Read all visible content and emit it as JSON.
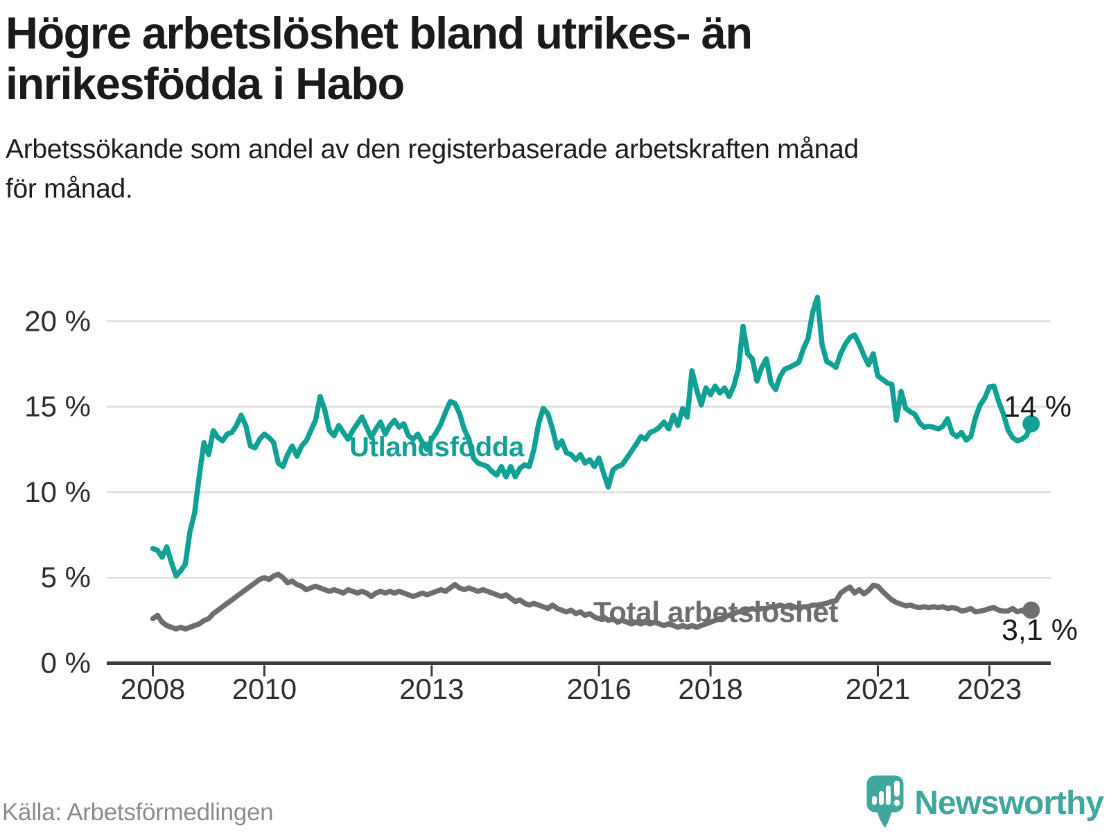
{
  "header": {
    "title": "Högre arbetslöshet bland utrikes- än inrikesfödda i Habo",
    "title_lines": [
      "Högre arbetslöshet bland utrikes- än",
      "inrikesfödda i Habo"
    ],
    "subtitle": "Arbetssökande som andel av den registerbaserade arbetskraften månad för månad.",
    "subtitle_lines": [
      "Arbetssökande som andel av den registerbaserade arbetskraften månad",
      "för månad."
    ]
  },
  "footer": {
    "source": "Källa: Arbetsförmedlingen",
    "brand": "Newsworthy"
  },
  "colors": {
    "teal": "#10a194",
    "gray": "#6d6e70",
    "logo_teal": "#3fa79c",
    "grid": "#dedede",
    "axis": "#3c3c3c",
    "text_dark": "#1a1a1a",
    "tick_text": "#2e2e2e",
    "source_text": "#8c8c8c"
  },
  "chart_data": {
    "type": "line",
    "title": "Högre arbetslöshet bland utrikes- än inrikesfödda i Habo",
    "subtitle": "Arbetssökande som andel av den registerbaserade arbetskraften månad för månad.",
    "x_start": "2008-01",
    "x_end": "2023-10",
    "frequency": "monthly",
    "grid": "horizontal",
    "legend_position": "inline-labels",
    "y_axis": {
      "ticks": [
        0,
        5,
        10,
        15,
        20
      ],
      "labels": [
        "0 %",
        "5 %",
        "10 %",
        "15 %",
        "20 %"
      ],
      "min": 0,
      "max": 22
    },
    "x_ticks": [
      {
        "label": "2008",
        "year": 2008
      },
      {
        "label": "2010",
        "year": 2010
      },
      {
        "label": "2013",
        "year": 2013
      },
      {
        "label": "2016",
        "year": 2016
      },
      {
        "label": "2018",
        "year": 2018
      },
      {
        "label": "2021",
        "year": 2021
      },
      {
        "label": "2023",
        "year": 2023
      }
    ],
    "series": [
      {
        "name": "Utlandsfödda",
        "color": "#10a194",
        "end_label": "14 %",
        "end_value": 14.0,
        "values": [
          6.7,
          6.6,
          6.2,
          6.8,
          5.9,
          5.1,
          5.4,
          5.8,
          7.7,
          8.8,
          11.0,
          12.9,
          12.2,
          13.6,
          13.2,
          13.0,
          13.4,
          13.5,
          13.9,
          14.5,
          13.9,
          12.7,
          12.6,
          13.1,
          13.4,
          13.2,
          12.9,
          11.7,
          11.5,
          12.2,
          12.7,
          12.1,
          12.7,
          13.0,
          13.6,
          14.2,
          15.6,
          14.8,
          13.6,
          13.3,
          13.9,
          13.5,
          13.1,
          13.6,
          14.0,
          14.4,
          13.8,
          13.2,
          13.7,
          14.1,
          13.4,
          13.9,
          14.2,
          13.8,
          14.0,
          13.3,
          13.1,
          13.4,
          12.9,
          12.5,
          13.1,
          13.5,
          14.0,
          14.7,
          15.3,
          15.2,
          14.6,
          13.7,
          13.1,
          12.0,
          11.7,
          11.6,
          11.5,
          11.2,
          11.0,
          11.5,
          10.9,
          11.5,
          10.9,
          11.4,
          11.6,
          11.5,
          12.5,
          14.0,
          14.9,
          14.6,
          13.7,
          12.6,
          13.0,
          12.3,
          12.2,
          11.9,
          12.2,
          11.7,
          11.9,
          11.5,
          12.0,
          11.1,
          10.3,
          11.3,
          11.5,
          11.6,
          12.0,
          12.4,
          12.8,
          13.25,
          13.1,
          13.5,
          13.6,
          13.8,
          14.1,
          13.7,
          14.5,
          13.9,
          14.9,
          14.4,
          17.1,
          16.0,
          15.1,
          16.1,
          15.7,
          16.2,
          15.8,
          16.1,
          15.6,
          16.2,
          17.2,
          19.7,
          18.1,
          17.8,
          16.5,
          17.3,
          17.8,
          16.4,
          16.0,
          16.8,
          17.2,
          17.3,
          17.45,
          17.6,
          18.4,
          19.0,
          20.55,
          21.4,
          18.65,
          17.65,
          17.5,
          17.3,
          18.1,
          18.65,
          19.05,
          19.2,
          18.65,
          18.0,
          17.45,
          18.1,
          16.8,
          16.6,
          16.4,
          16.3,
          14.2,
          15.9,
          14.9,
          14.7,
          14.55,
          14.05,
          13.8,
          13.85,
          13.8,
          13.7,
          13.85,
          14.3,
          13.45,
          13.25,
          13.5,
          13.05,
          13.25,
          14.35,
          15.1,
          15.5,
          16.15,
          16.2,
          15.3,
          14.6,
          13.65,
          13.2,
          13.0,
          13.1,
          13.3,
          14.0
        ]
      },
      {
        "name": "Total arbetslöshet",
        "color": "#6d6e70",
        "end_label": "3,1 %",
        "end_value": 3.1,
        "values": [
          2.6,
          2.8,
          2.4,
          2.2,
          2.1,
          2.0,
          2.1,
          2.0,
          2.1,
          2.2,
          2.3,
          2.5,
          2.6,
          2.9,
          3.1,
          3.3,
          3.5,
          3.7,
          3.9,
          4.1,
          4.3,
          4.5,
          4.7,
          4.9,
          5.0,
          4.9,
          5.1,
          5.2,
          5.0,
          4.7,
          4.8,
          4.6,
          4.5,
          4.3,
          4.4,
          4.5,
          4.4,
          4.3,
          4.2,
          4.3,
          4.2,
          4.1,
          4.3,
          4.2,
          4.1,
          4.2,
          4.1,
          3.9,
          4.1,
          4.2,
          4.1,
          4.2,
          4.1,
          4.2,
          4.1,
          4.0,
          3.9,
          4.0,
          4.1,
          4.0,
          4.1,
          4.2,
          4.3,
          4.2,
          4.4,
          4.6,
          4.4,
          4.3,
          4.4,
          4.3,
          4.2,
          4.3,
          4.2,
          4.1,
          4.0,
          3.9,
          4.0,
          3.8,
          3.6,
          3.7,
          3.5,
          3.4,
          3.5,
          3.4,
          3.3,
          3.2,
          3.4,
          3.2,
          3.1,
          3.0,
          3.1,
          2.9,
          3.0,
          2.8,
          2.9,
          2.7,
          2.6,
          2.7,
          2.5,
          2.6,
          2.4,
          2.5,
          2.4,
          2.3,
          2.4,
          2.3,
          2.4,
          2.3,
          2.4,
          2.3,
          2.2,
          2.3,
          2.2,
          2.1,
          2.2,
          2.1,
          2.2,
          2.1,
          2.2,
          2.3,
          2.4,
          2.5,
          2.6,
          2.7,
          2.8,
          2.9,
          3.0,
          3.0,
          3.1,
          3.2,
          3.1,
          3.2,
          3.2,
          3.3,
          3.3,
          3.4,
          3.3,
          3.4,
          3.3,
          3.2,
          3.3,
          3.3,
          3.4,
          3.4,
          3.45,
          3.5,
          3.6,
          3.65,
          4.1,
          4.3,
          4.45,
          4.1,
          4.3,
          4.05,
          4.25,
          4.55,
          4.5,
          4.2,
          3.95,
          3.7,
          3.55,
          3.45,
          3.35,
          3.4,
          3.3,
          3.25,
          3.3,
          3.25,
          3.3,
          3.25,
          3.3,
          3.2,
          3.25,
          3.2,
          3.05,
          3.1,
          3.2,
          3.0,
          3.05,
          3.1,
          3.2,
          3.25,
          3.1,
          3.05,
          3.05,
          3.2,
          3.0,
          3.1,
          2.9,
          3.1
        ]
      }
    ]
  }
}
